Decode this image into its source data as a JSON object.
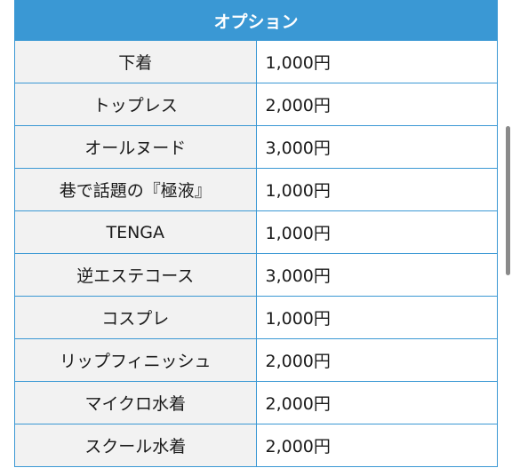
{
  "table": {
    "header": "オプション",
    "rows": [
      {
        "name": "下着",
        "price": "1,000円"
      },
      {
        "name": "トップレス",
        "price": "2,000円"
      },
      {
        "name": "オールヌード",
        "price": "3,000円"
      },
      {
        "name": "巷で話題の『極液』",
        "price": "1,000円"
      },
      {
        "name": "TENGA",
        "price": "1,000円"
      },
      {
        "name": "逆エステコース",
        "price": "3,000円"
      },
      {
        "name": "コスプレ",
        "price": "1,000円"
      },
      {
        "name": "リップフィニッシュ",
        "price": "2,000円"
      },
      {
        "name": "マイクロ水着",
        "price": "2,000円"
      },
      {
        "name": "スクール水着",
        "price": "2,000円"
      }
    ]
  },
  "colors": {
    "header_bg": "#3a98d4",
    "border": "#3a98d4",
    "name_cell_bg": "#f2f2f2"
  }
}
